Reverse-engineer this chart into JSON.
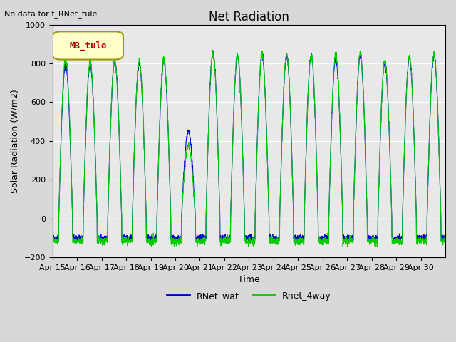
{
  "title": "Net Radiation",
  "xlabel": "Time",
  "ylabel": "Solar Radiation (W/m2)",
  "annotation": "No data for f_RNet_tule",
  "legend_label": "MB_tule",
  "ylim": [
    -200,
    1000
  ],
  "series": [
    "RNet_wat",
    "Rnet_4way"
  ],
  "series_colors": [
    "#0000cc",
    "#00cc00"
  ],
  "x_tick_labels": [
    "Apr 15",
    "Apr 16",
    "Apr 17",
    "Apr 18",
    "Apr 19",
    "Apr 20",
    "Apr 21",
    "Apr 22",
    "Apr 23",
    "Apr 24",
    "Apr 25",
    "Apr 26",
    "Apr 27",
    "Apr 28",
    "Apr 29",
    "Apr 30"
  ],
  "background_color": "#d8d8d8",
  "plot_bg_color": "#e8e8e8",
  "n_days": 16,
  "peak_wat": [
    790,
    790,
    810,
    800,
    810,
    450,
    855,
    835,
    840,
    835,
    840,
    820,
    840,
    800,
    830,
    840
  ],
  "peak_4way": [
    825,
    810,
    810,
    810,
    820,
    375,
    850,
    840,
    845,
    840,
    845,
    845,
    848,
    808,
    835,
    845
  ],
  "night_val": -100,
  "pts_per_day": 144
}
